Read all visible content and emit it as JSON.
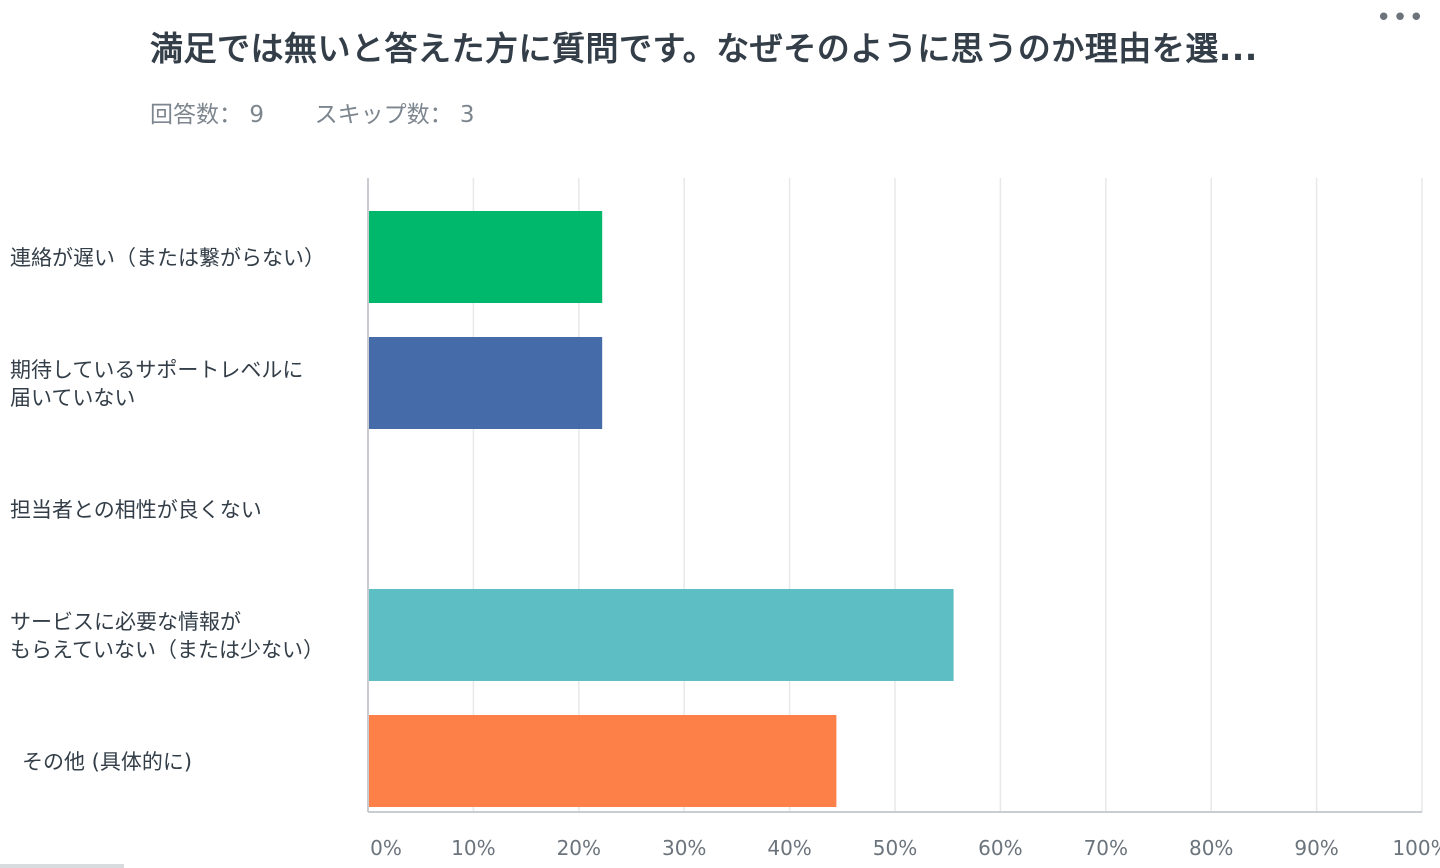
{
  "header": {
    "title": "満足では無いと答えた方に質問です。なぜそのように思うのか理由を選...",
    "more_label": "•••",
    "responses_label": "回答数：",
    "responses_value": "9",
    "skipped_label": "スキップ数：",
    "skipped_value": "3"
  },
  "chart_data": {
    "type": "bar",
    "orientation": "horizontal",
    "categories": [
      [
        "連絡が遅い（または繋がらない）"
      ],
      [
        "期待しているサポートレベルに",
        "届いていない"
      ],
      [
        "担当者との相性が良くない"
      ],
      [
        "サービスに必要な情報が",
        "もらえていない（または少ない）"
      ],
      [
        "その他 (具体的に)"
      ]
    ],
    "values": [
      22.22,
      22.22,
      0,
      55.56,
      44.44
    ],
    "colors": [
      "#00b86b",
      "#456ca8",
      "#f7d843",
      "#5dbfc4",
      "#fd8049"
    ],
    "xlim": [
      0,
      100
    ],
    "ticks": [
      "0%",
      "10%",
      "20%",
      "30%",
      "40%",
      "50%",
      "60%",
      "70%",
      "80%",
      "90%",
      "100%"
    ],
    "grid": true
  }
}
